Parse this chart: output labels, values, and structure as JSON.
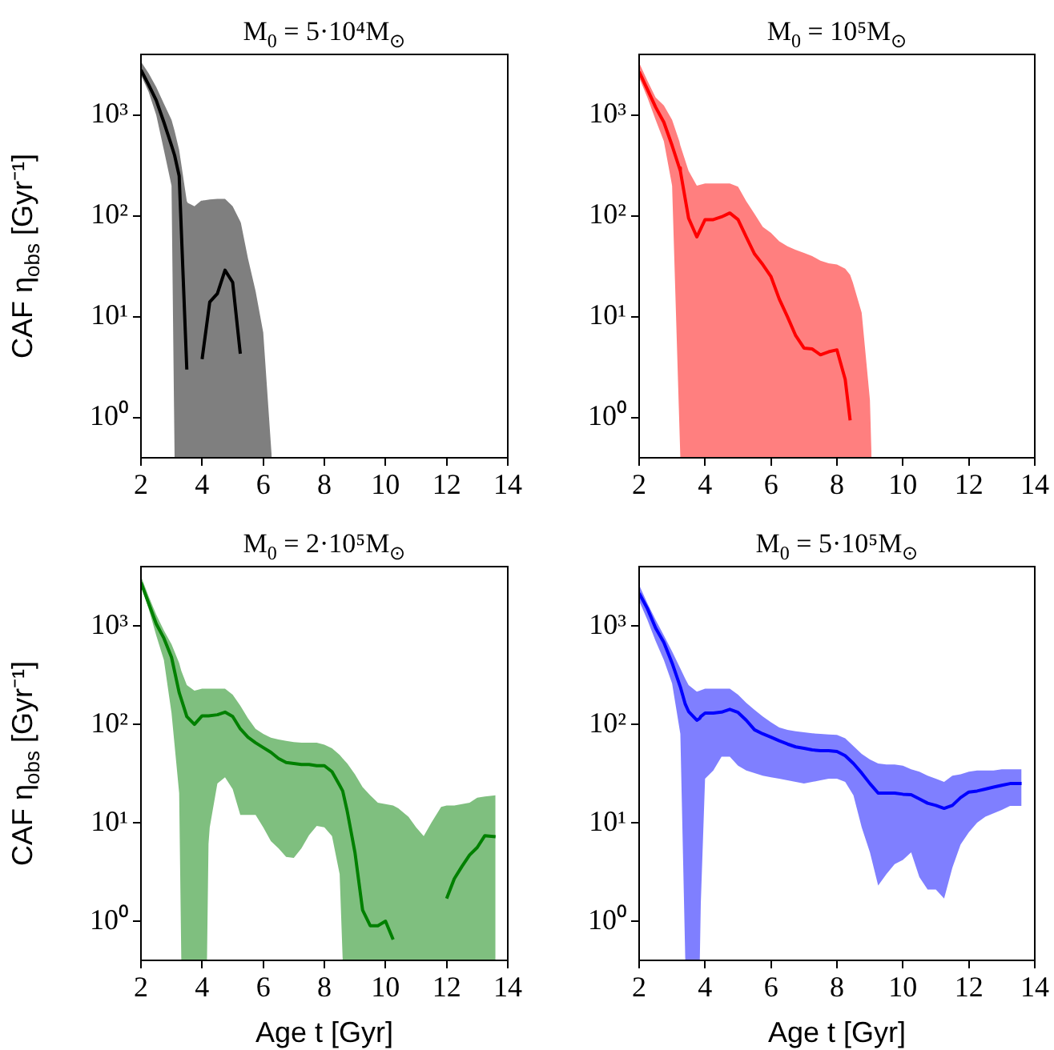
{
  "chart_data": [
    {
      "type": "line",
      "title": "M$_{0}$ = 5·10⁴M$_{⊙}$",
      "ylabel": "CAF η$_{obs}$ [Gyr⁻¹]",
      "log": true,
      "xlim": [
        2,
        14
      ],
      "xticks": [
        2,
        4,
        6,
        8,
        10,
        12,
        14
      ],
      "ylim": [
        0.4,
        4000
      ],
      "yticks": [
        {
          "value": 1,
          "label": "10⁰"
        },
        {
          "value": 10,
          "label": "10¹"
        },
        {
          "value": 100,
          "label": "10²"
        },
        {
          "value": 1000,
          "label": "10³"
        }
      ],
      "series": [
        {
          "color": "#000000",
          "x": [
            2,
            2.25,
            2.5,
            2.75,
            3,
            3.1,
            3.25,
            3.5,
            3.53,
            3.75,
            3.97,
            4,
            4.25,
            4.5,
            4.75,
            5,
            5.25,
            5.27,
            5.5,
            5.75,
            6,
            6.28
          ],
          "values": [
            2800,
            2000,
            1400,
            850,
            500,
            400,
            250,
            3,
            null,
            null,
            null,
            3.8,
            14,
            17,
            29,
            22,
            4.3,
            null,
            null,
            null,
            null,
            null
          ],
          "upper": [
            3400,
            2600,
            1900,
            1300,
            900,
            700,
            450,
            140,
            135,
            125,
            142,
            142,
            146,
            148,
            148,
            125,
            88,
            85,
            38,
            18,
            7,
            0.4
          ],
          "lower": [
            2500,
            1700,
            1000,
            450,
            200,
            0.4,
            0.4,
            0.4,
            0.4,
            0.4,
            0.4,
            0.4,
            0.4,
            0.4,
            0.4,
            0.4,
            0.4,
            0.4,
            0.4,
            0.4,
            0.4,
            0.4
          ]
        }
      ]
    },
    {
      "type": "line",
      "title": "M$_{0}$ = 10⁵M$_{⊙}$",
      "log": true,
      "xlim": [
        2,
        14
      ],
      "xticks": [
        2,
        4,
        6,
        8,
        10,
        12,
        14
      ],
      "ylim": [
        0.4,
        4000
      ],
      "yticks": [
        {
          "value": 1,
          "label": "10⁰"
        },
        {
          "value": 10,
          "label": "10¹"
        },
        {
          "value": 100,
          "label": "10²"
        },
        {
          "value": 1000,
          "label": "10³"
        }
      ],
      "series": [
        {
          "color": "#ff0000",
          "x": [
            2,
            2.25,
            2.5,
            2.75,
            3,
            3.22,
            3.25,
            3.5,
            3.75,
            4,
            4.25,
            4.5,
            4.75,
            5,
            5.25,
            5.5,
            5.75,
            6,
            6.25,
            6.5,
            6.75,
            7,
            7.25,
            7.5,
            7.75,
            8,
            8.25,
            8.4,
            8.48,
            8.75,
            9,
            9.05
          ],
          "values": [
            2700,
            1800,
            1200,
            850,
            500,
            300,
            280,
            95,
            62,
            92,
            92,
            98,
            107,
            92,
            62,
            42,
            33,
            25,
            15,
            10,
            6.5,
            4.9,
            4.8,
            4.2,
            4.5,
            4.7,
            2.4,
            0.94,
            null,
            null,
            null,
            null
          ],
          "upper": [
            3300,
            2200,
            1500,
            1250,
            900,
            550,
            500,
            280,
            200,
            210,
            210,
            210,
            210,
            195,
            140,
            105,
            78,
            68,
            56,
            50,
            46,
            43,
            40,
            36,
            34,
            33,
            30,
            26,
            22,
            11,
            1.5,
            0.4
          ],
          "lower": [
            2350,
            1500,
            900,
            550,
            200,
            0.4,
            0.4,
            0.4,
            0.4,
            0.4,
            0.4,
            0.4,
            0.4,
            0.4,
            0.4,
            0.4,
            0.4,
            0.4,
            0.4,
            0.4,
            0.4,
            0.4,
            0.4,
            0.4,
            0.4,
            0.4,
            0.4,
            0.4,
            0.4,
            0.4,
            0.4,
            0.4
          ]
        }
      ]
    },
    {
      "type": "line",
      "title": "M$_{0}$ = 2·10⁵M$_{⊙}$",
      "ylabel": "CAF η$_{obs}$ [Gyr⁻¹]",
      "xlabel": "Age t [Gyr]",
      "log": true,
      "xlim": [
        2,
        14
      ],
      "xticks": [
        2,
        4,
        6,
        8,
        10,
        12,
        14
      ],
      "ylim": [
        0.4,
        4000
      ],
      "yticks": [
        {
          "value": 1,
          "label": "10⁰"
        },
        {
          "value": 10,
          "label": "10¹"
        },
        {
          "value": 100,
          "label": "10²"
        },
        {
          "value": 1000,
          "label": "10³"
        }
      ],
      "series": [
        {
          "color": "#008000",
          "x": [
            2,
            2.25,
            2.5,
            2.75,
            3,
            3.25,
            3.32,
            3.5,
            3.75,
            4,
            4.16,
            4.21,
            4.25,
            4.5,
            4.75,
            5,
            5.25,
            5.5,
            5.75,
            6,
            6.25,
            6.5,
            6.75,
            7,
            7.25,
            7.5,
            7.75,
            8,
            8.25,
            8.5,
            8.6,
            8.75,
            9,
            9.25,
            9.5,
            9.75,
            10,
            10.25,
            10.42,
            10.75,
            11,
            11.25,
            11.5,
            11.82,
            12,
            12.25,
            12.5,
            12.75,
            13,
            13.25,
            13.6
          ],
          "values": [
            2760,
            1700,
            1050,
            750,
            480,
            210,
            180,
            120,
            100,
            122,
            122,
            122,
            122,
            125,
            133,
            120,
            90,
            74,
            65,
            58,
            52,
            45,
            41,
            40,
            39,
            39,
            38,
            38,
            33,
            24,
            21,
            13,
            5,
            1.3,
            0.9,
            0.9,
            1.0,
            0.65,
            null,
            null,
            null,
            null,
            null,
            null,
            1.7,
            2.7,
            3.6,
            4.7,
            5.6,
            7.4,
            7.2
          ],
          "upper": [
            3200,
            2000,
            1300,
            900,
            650,
            420,
            350,
            250,
            220,
            230,
            230,
            230,
            230,
            230,
            230,
            200,
            155,
            115,
            90,
            80,
            73,
            70,
            68,
            66,
            65,
            65,
            65,
            62,
            57,
            49,
            45,
            40,
            31,
            23,
            19,
            16,
            15.5,
            15,
            14,
            11.5,
            9,
            7.3,
            10,
            14.5,
            15,
            15,
            15.5,
            16,
            18,
            18.5,
            19
          ],
          "lower": [
            2600,
            1500,
            800,
            450,
            130,
            20,
            0.4,
            0.4,
            0.4,
            0.4,
            0.4,
            6.1,
            9,
            25,
            29,
            22,
            12,
            12,
            12,
            9,
            6.5,
            5.5,
            4.5,
            4.4,
            5.5,
            7.5,
            9.3,
            9,
            7.3,
            3,
            0.4,
            0.4,
            0.4,
            0.4,
            0.4,
            0.4,
            0.4,
            0.4,
            0.4,
            0.4,
            0.4,
            0.4,
            0.4,
            0.4,
            0.4,
            0.4,
            0.4,
            0.4,
            0.4,
            0.4,
            0.4
          ]
        }
      ]
    },
    {
      "type": "line",
      "title": "M$_{0}$ = 5·10⁵M$_{⊙}$",
      "xlabel": "Age t [Gyr]",
      "log": true,
      "xlim": [
        2,
        14
      ],
      "xticks": [
        2,
        4,
        6,
        8,
        10,
        12,
        14
      ],
      "ylim": [
        0.4,
        4000
      ],
      "yticks": [
        {
          "value": 1,
          "label": "10⁰"
        },
        {
          "value": 10,
          "label": "10¹"
        },
        {
          "value": 100,
          "label": "10²"
        },
        {
          "value": 1000,
          "label": "10³"
        }
      ],
      "series": [
        {
          "color": "#0000ff",
          "x": [
            2,
            2.25,
            2.5,
            2.75,
            3,
            3.25,
            3.4,
            3.5,
            3.75,
            3.84,
            3.87,
            4,
            4.25,
            4.5,
            4.75,
            5,
            5.25,
            5.5,
            5.75,
            6,
            6.25,
            6.5,
            6.75,
            7,
            7.25,
            7.5,
            7.75,
            8,
            8.25,
            8.5,
            8.75,
            9,
            9.25,
            9.5,
            9.75,
            10,
            10.25,
            10.5,
            10.75,
            11,
            11.25,
            11.5,
            11.75,
            12,
            12.25,
            12.5,
            12.75,
            13,
            13.25,
            13.6
          ],
          "values": [
            2150,
            1500,
            950,
            680,
            420,
            240,
            160,
            135,
            110,
            115,
            120,
            130,
            130,
            133,
            142,
            132,
            110,
            88,
            80,
            74,
            68,
            63,
            59,
            57,
            55,
            54,
            54,
            53,
            48,
            40,
            32,
            25,
            20,
            20,
            20,
            19.5,
            19.3,
            17.5,
            15.8,
            15,
            14,
            15,
            18,
            20.5,
            21,
            22,
            23,
            24,
            25,
            25
          ],
          "upper": [
            2600,
            1700,
            1150,
            800,
            550,
            370,
            290,
            250,
            215,
            220,
            222,
            230,
            230,
            230,
            230,
            200,
            165,
            140,
            120,
            105,
            93,
            88,
            85,
            83,
            81,
            80,
            79,
            78,
            72,
            60,
            50,
            44,
            40,
            39,
            39,
            38,
            35,
            33,
            30,
            28,
            26,
            30,
            31,
            33,
            34,
            34,
            34,
            35,
            35,
            35
          ],
          "lower": [
            1800,
            1150,
            700,
            450,
            260,
            80,
            0.4,
            0.4,
            0.4,
            0.4,
            1.5,
            28,
            34,
            47,
            47,
            38,
            34,
            32,
            30,
            29,
            28,
            27,
            26,
            25,
            26,
            27,
            28,
            28,
            26,
            19,
            9,
            5,
            2.3,
            3,
            3.8,
            4.2,
            5,
            2.8,
            2.1,
            2.1,
            1.7,
            3.5,
            6,
            8,
            10,
            11.5,
            12.5,
            13.5,
            14.8,
            14.8
          ]
        }
      ]
    }
  ]
}
